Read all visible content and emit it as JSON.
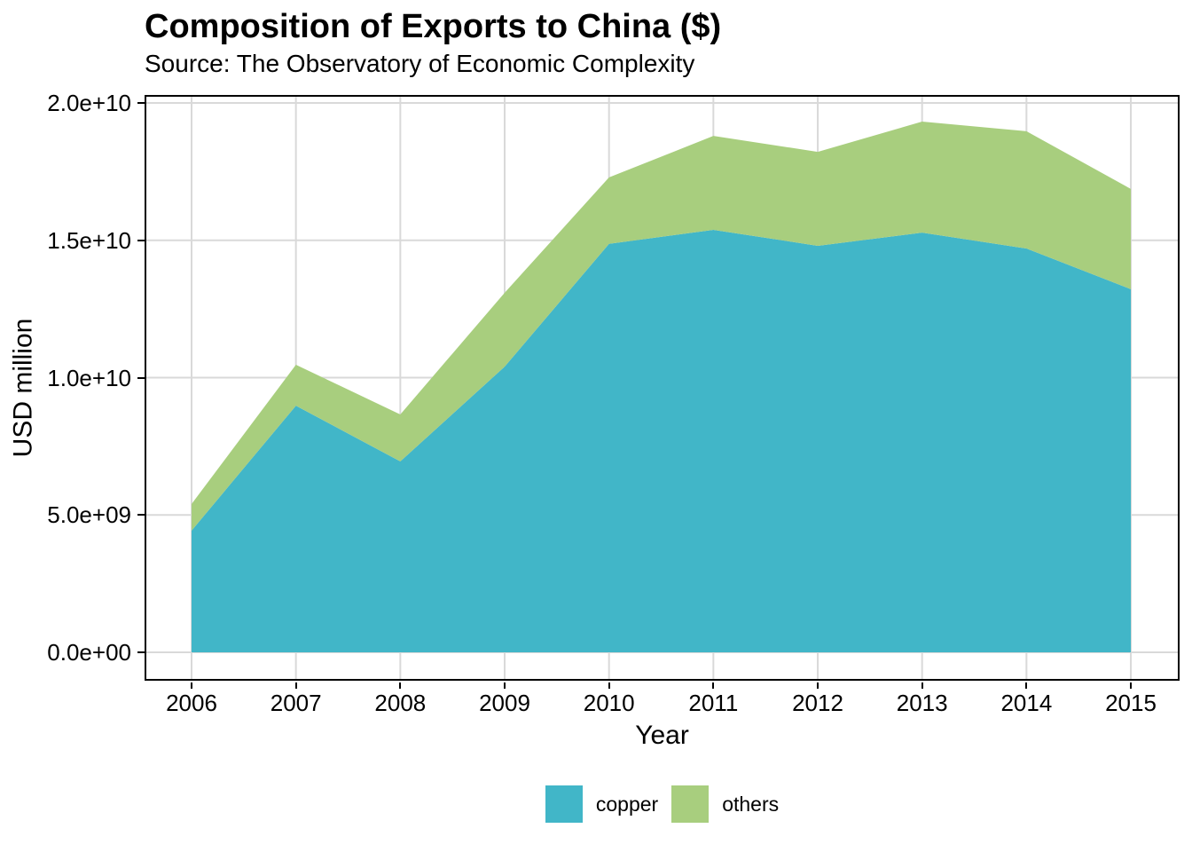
{
  "chart_data": {
    "type": "area",
    "stacked": true,
    "title": "Composition of Exports to China ($)",
    "subtitle": "Source: The Observatory of Economic Complexity",
    "xlabel": "Year",
    "ylabel": "USD million",
    "x": [
      2006,
      2007,
      2008,
      2009,
      2010,
      2011,
      2012,
      2013,
      2014,
      2015
    ],
    "series": [
      {
        "name": "copper",
        "color": "#41B6C8",
        "values": [
          4430000000.0,
          8980000000.0,
          6950000000.0,
          10400000000.0,
          14870000000.0,
          15380000000.0,
          14800000000.0,
          15280000000.0,
          14700000000.0,
          13220000000.0
        ]
      },
      {
        "name": "others",
        "color": "#A8CE7E",
        "values": [
          970000000.0,
          1490000000.0,
          1710000000.0,
          2690000000.0,
          2420000000.0,
          3420000000.0,
          3420000000.0,
          4040000000.0,
          4270000000.0,
          3650000000.0
        ]
      }
    ],
    "ylim": [
      0,
      20000000000.0
    ],
    "yticks": {
      "values": [
        0,
        5000000000.0,
        10000000000.0,
        15000000000.0,
        20000000000.0
      ],
      "labels": [
        "0.0e+00",
        "5.0e+09",
        "1.0e+10",
        "1.5e+10",
        "2.0e+10"
      ]
    },
    "xtick_labels": [
      "2006",
      "2007",
      "2008",
      "2009",
      "2010",
      "2011",
      "2012",
      "2013",
      "2014",
      "2015"
    ],
    "grid": true,
    "legend_position": "bottom",
    "colors": {
      "gridline": "#D9D9D9",
      "panel_border": "#000000",
      "tick_mark": "#000000",
      "background": "#FFFFFF"
    }
  }
}
